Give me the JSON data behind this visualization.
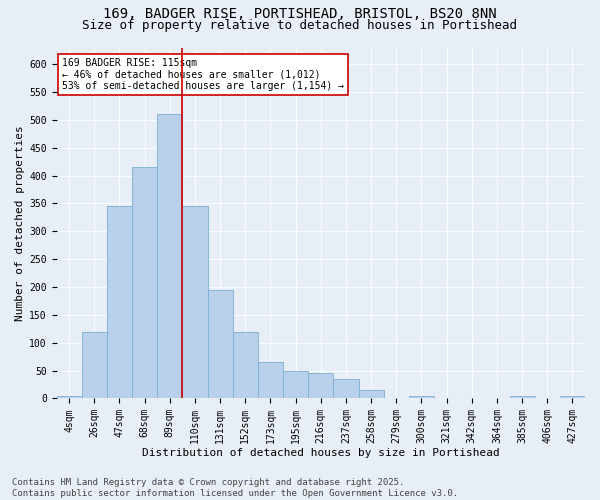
{
  "title1": "169, BADGER RISE, PORTISHEAD, BRISTOL, BS20 8NN",
  "title2": "Size of property relative to detached houses in Portishead",
  "xlabel": "Distribution of detached houses by size in Portishead",
  "ylabel": "Number of detached properties",
  "categories": [
    "4sqm",
    "26sqm",
    "47sqm",
    "68sqm",
    "89sqm",
    "110sqm",
    "131sqm",
    "152sqm",
    "173sqm",
    "195sqm",
    "216sqm",
    "237sqm",
    "258sqm",
    "279sqm",
    "300sqm",
    "321sqm",
    "342sqm",
    "364sqm",
    "385sqm",
    "406sqm",
    "427sqm"
  ],
  "values": [
    5,
    120,
    345,
    415,
    510,
    345,
    195,
    120,
    65,
    50,
    45,
    35,
    15,
    0,
    5,
    0,
    0,
    0,
    5,
    0,
    5
  ],
  "bar_color": "#b8d0ea",
  "bar_edge_color": "#7aafd4",
  "vline_x_idx": 4,
  "vline_color": "#cc0000",
  "annotation_text": "169 BADGER RISE: 115sqm\n← 46% of detached houses are smaller (1,012)\n53% of semi-detached houses are larger (1,154) →",
  "annotation_box_color": "#ffffff",
  "annotation_box_edge_color": "#cc0000",
  "ylim": [
    0,
    630
  ],
  "yticks": [
    0,
    50,
    100,
    150,
    200,
    250,
    300,
    350,
    400,
    450,
    500,
    550,
    600
  ],
  "bg_color": "#e8eef5",
  "footer": "Contains HM Land Registry data © Crown copyright and database right 2025.\nContains public sector information licensed under the Open Government Licence v3.0.",
  "title1_fontsize": 10,
  "title2_fontsize": 9,
  "tick_fontsize": 7,
  "label_fontsize": 8,
  "annot_fontsize": 7,
  "footer_fontsize": 6.5
}
